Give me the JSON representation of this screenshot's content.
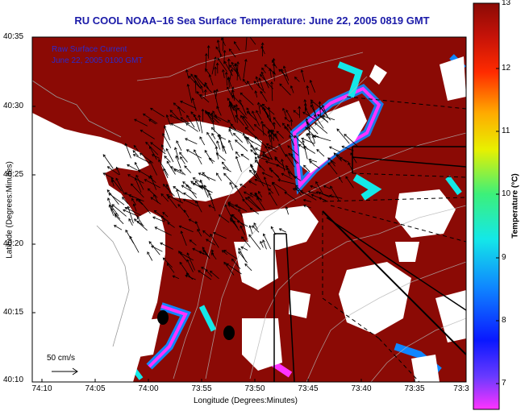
{
  "title": "RU COOL  NOAA–16  Sea Surface Temperature:  June 22, 2005 0819 GMT",
  "overlay": {
    "line1": "Raw Surface Current",
    "line2": "June 22, 2005 0100 GMT"
  },
  "axes": {
    "xlabel": "Longitude (Degrees:Minutes)",
    "ylabel": "Latitude (Degrees:Minutes)",
    "x_ticks": [
      "74:10",
      "74:05",
      "74:00",
      "73:55",
      "73:50",
      "73:45",
      "73:40",
      "73:35",
      "73:3"
    ],
    "y_ticks": [
      "40:35",
      "40:30",
      "40:25",
      "40:20",
      "40:15",
      "40:10"
    ]
  },
  "colorbar": {
    "label": "Temperature (°C)",
    "ticks": [
      "13",
      "12",
      "11",
      "10",
      "9",
      "8",
      "7"
    ],
    "min": 6.5,
    "max": 13
  },
  "scale": {
    "label": "50 cm/s"
  },
  "colors": {
    "warm": "#8b0a05",
    "land": "#ffffff",
    "title": "#1a1aa8",
    "overlay": "#2a2ad0"
  }
}
